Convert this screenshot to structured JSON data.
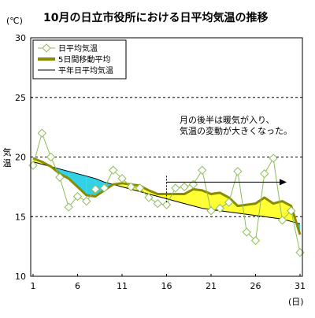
{
  "chart_data": {
    "type": "line",
    "title": "10月の日立市役所における日平均気温の推移",
    "y_unit": "(℃)",
    "x_unit": "(日)",
    "ylabel": "気温",
    "xlim": [
      1,
      31
    ],
    "ylim": [
      10,
      30
    ],
    "x_ticks": [
      "1",
      "6",
      "11",
      "16",
      "21",
      "26",
      "31"
    ],
    "y_ticks": [
      "10",
      "15",
      "20",
      "25",
      "30"
    ],
    "gridlines_dashed": [
      15,
      20,
      25
    ],
    "legend_position": "top-left",
    "annotation": {
      "lines": [
        "月の後半は暖気が入り、",
        "気温の変動が大きくなった。"
      ],
      "from_day": 16,
      "to_day": 29.5,
      "arrow_y": 17.9,
      "marker_day": 16
    },
    "x": [
      1,
      2,
      3,
      4,
      5,
      6,
      7,
      8,
      9,
      10,
      11,
      12,
      13,
      14,
      15,
      16,
      17,
      18,
      19,
      20,
      21,
      22,
      23,
      24,
      25,
      26,
      27,
      28,
      29,
      30,
      31
    ],
    "series": [
      {
        "name": "日平均気温",
        "style": "markers",
        "color": "#8fbc5a",
        "values": [
          19.3,
          22.0,
          20.0,
          18.3,
          15.8,
          16.7,
          16.3,
          17.3,
          17.4,
          18.9,
          18.2,
          17.5,
          17.4,
          16.6,
          16.1,
          16.0,
          17.4,
          17.5,
          17.7,
          18.9,
          15.5,
          15.7,
          16.2,
          18.8,
          13.7,
          13.0,
          18.6,
          19.9,
          14.7,
          15.5,
          12.0
        ]
      },
      {
        "name": "5日間移動平均",
        "style": "thick",
        "color": "#8b8b00",
        "values": [
          19.9,
          19.6,
          19.2,
          18.6,
          18.2,
          17.5,
          16.8,
          16.7,
          17.2,
          17.7,
          17.8,
          17.7,
          17.6,
          17.2,
          16.9,
          16.9,
          16.9,
          16.9,
          17.3,
          17.2,
          16.9,
          17.0,
          16.6,
          15.9,
          16.0,
          16.1,
          16.6,
          16.1,
          16.3,
          15.9,
          13.5
        ]
      },
      {
        "name": "平年日平均気温",
        "style": "thin",
        "color": "#000000",
        "values": [
          19.6,
          19.4,
          19.2,
          19.0,
          18.8,
          18.6,
          18.4,
          18.2,
          17.9,
          17.7,
          17.5,
          17.3,
          17.1,
          16.9,
          16.7,
          16.5,
          16.3,
          16.1,
          15.9,
          15.7,
          15.6,
          15.5,
          15.4,
          15.3,
          15.2,
          15.1,
          15.0,
          14.9,
          14.8,
          14.6,
          14.4
        ]
      }
    ],
    "fill_colors": {
      "above_normal": "#ffff33",
      "below_normal": "#33d1e6"
    }
  }
}
